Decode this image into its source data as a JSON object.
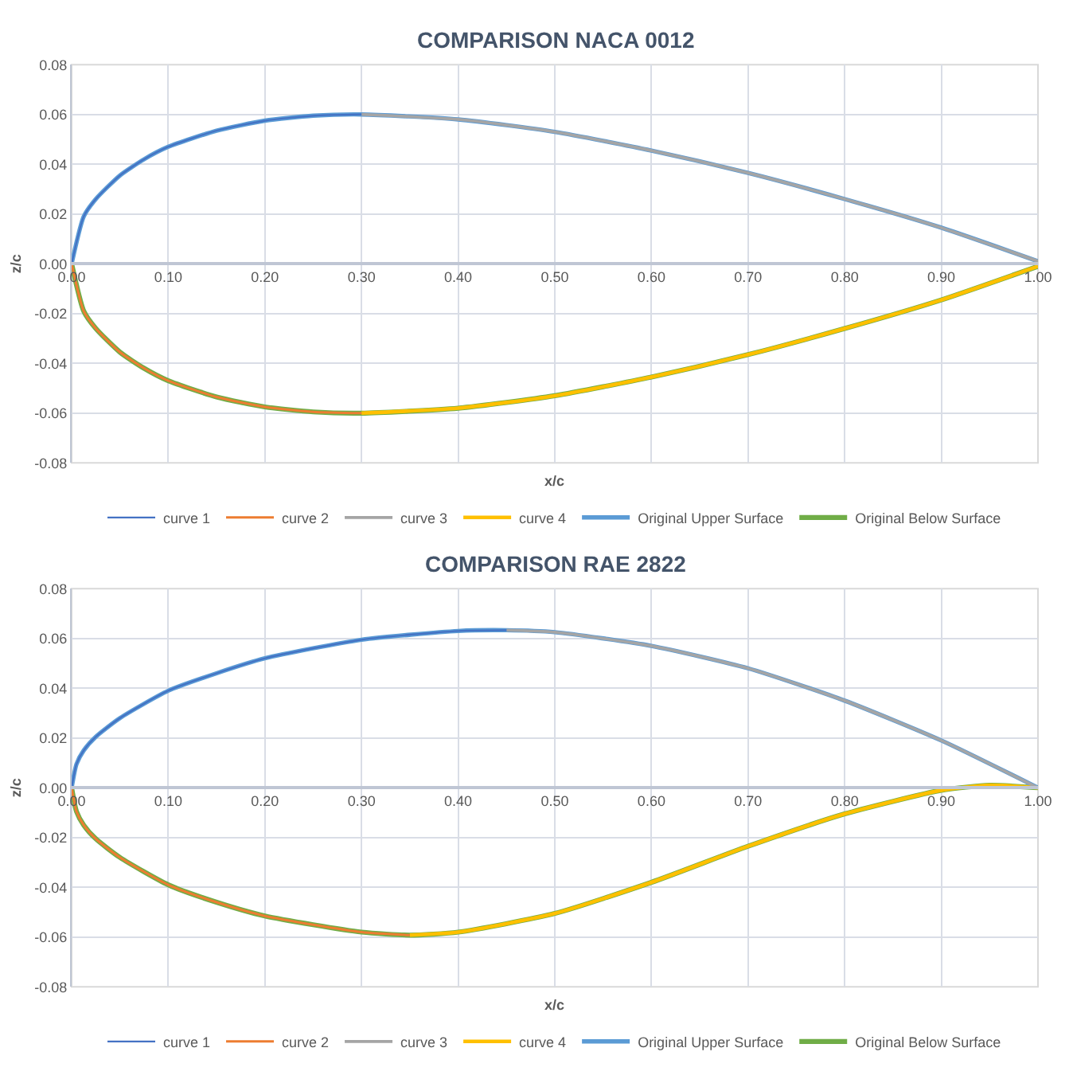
{
  "chart_data": [
    {
      "type": "line",
      "title": "COMPARISON NACA 0012",
      "xlabel": "x/c",
      "ylabel": "z/c",
      "grid": true,
      "legend": "bottom",
      "xlim": [
        0,
        1
      ],
      "ylim": [
        -0.08,
        0.08
      ],
      "xticks": [
        {
          "value": 0,
          "label": "0.00"
        },
        {
          "value": 0.1,
          "label": "0.10"
        },
        {
          "value": 0.2,
          "label": "0.20"
        },
        {
          "value": 0.3,
          "label": "0.30"
        },
        {
          "value": 0.4,
          "label": "0.40"
        },
        {
          "value": 0.5,
          "label": "0.50"
        },
        {
          "value": 0.6,
          "label": "0.60"
        },
        {
          "value": 0.7,
          "label": "0.70"
        },
        {
          "value": 0.8,
          "label": "0.80"
        },
        {
          "value": 0.9,
          "label": "0.90"
        },
        {
          "value": 1,
          "label": "1.00"
        }
      ],
      "yticks": [
        {
          "value": -0.08,
          "label": "-0.08"
        },
        {
          "value": -0.06,
          "label": "-0.06"
        },
        {
          "value": -0.04,
          "label": "-0.04"
        },
        {
          "value": -0.02,
          "label": "-0.02"
        },
        {
          "value": 0,
          "label": "0.00"
        },
        {
          "value": 0.02,
          "label": "0.02"
        },
        {
          "value": 0.04,
          "label": "0.04"
        },
        {
          "value": 0.06,
          "label": "0.06"
        },
        {
          "value": 0.08,
          "label": "0.08"
        }
      ],
      "series": [
        {
          "name": "curve 1",
          "color": "#4472c4",
          "x": [
            0,
            0.0125,
            0.025,
            0.05,
            0.075,
            0.1,
            0.15,
            0.2,
            0.25,
            0.3
          ],
          "values": [
            0,
            0.019,
            0.026,
            0.0355,
            0.042,
            0.047,
            0.0535,
            0.0575,
            0.0595,
            0.06
          ]
        },
        {
          "name": "curve 2",
          "color": "#ed7d31",
          "x": [
            0,
            0.0125,
            0.025,
            0.05,
            0.075,
            0.1,
            0.15,
            0.2,
            0.25,
            0.3
          ],
          "values": [
            0,
            -0.019,
            -0.026,
            -0.0355,
            -0.042,
            -0.047,
            -0.0535,
            -0.0575,
            -0.0595,
            -0.06
          ]
        },
        {
          "name": "curve 3",
          "color": "#a5a5a5",
          "x": [
            0.3,
            0.4,
            0.5,
            0.6,
            0.7,
            0.8,
            0.9,
            1.0
          ],
          "values": [
            0.06,
            0.058,
            0.053,
            0.0455,
            0.0365,
            0.026,
            0.0145,
            0.001
          ]
        },
        {
          "name": "curve 4",
          "color": "#ffc000",
          "x": [
            0.3,
            0.4,
            0.5,
            0.6,
            0.7,
            0.8,
            0.9,
            1.0
          ],
          "values": [
            -0.06,
            -0.058,
            -0.053,
            -0.0455,
            -0.0365,
            -0.026,
            -0.0145,
            -0.001
          ]
        },
        {
          "name": "Original Upper Surface",
          "color": "#5b9bd5",
          "x": [
            0,
            0.0125,
            0.025,
            0.05,
            0.075,
            0.1,
            0.15,
            0.2,
            0.25,
            0.3,
            0.4,
            0.5,
            0.6,
            0.7,
            0.8,
            0.9,
            1.0
          ],
          "values": [
            0,
            0.019,
            0.026,
            0.0355,
            0.042,
            0.047,
            0.0535,
            0.0575,
            0.0595,
            0.06,
            0.058,
            0.053,
            0.0455,
            0.0365,
            0.026,
            0.0145,
            0.001
          ]
        },
        {
          "name": "Original Below Surface",
          "color": "#70ad47",
          "x": [
            0,
            0.0125,
            0.025,
            0.05,
            0.075,
            0.1,
            0.15,
            0.2,
            0.25,
            0.3,
            0.4,
            0.5,
            0.6,
            0.7,
            0.8,
            0.9,
            1.0
          ],
          "values": [
            0,
            -0.019,
            -0.026,
            -0.0355,
            -0.042,
            -0.047,
            -0.0535,
            -0.0575,
            -0.0595,
            -0.06,
            -0.058,
            -0.053,
            -0.0455,
            -0.0365,
            -0.026,
            -0.0145,
            -0.001
          ]
        }
      ]
    },
    {
      "type": "line",
      "title": "COMPARISON RAE 2822",
      "xlabel": "x/c",
      "ylabel": "z/c",
      "grid": true,
      "legend": "bottom",
      "xlim": [
        0,
        1
      ],
      "ylim": [
        -0.08,
        0.08
      ],
      "xticks": [
        {
          "value": 0,
          "label": "0.00"
        },
        {
          "value": 0.1,
          "label": "0.10"
        },
        {
          "value": 0.2,
          "label": "0.20"
        },
        {
          "value": 0.3,
          "label": "0.30"
        },
        {
          "value": 0.4,
          "label": "0.40"
        },
        {
          "value": 0.5,
          "label": "0.50"
        },
        {
          "value": 0.6,
          "label": "0.60"
        },
        {
          "value": 0.7,
          "label": "0.70"
        },
        {
          "value": 0.8,
          "label": "0.80"
        },
        {
          "value": 0.9,
          "label": "0.90"
        },
        {
          "value": 1,
          "label": "1.00"
        }
      ],
      "yticks": [
        {
          "value": -0.08,
          "label": "-0.08"
        },
        {
          "value": -0.06,
          "label": "-0.06"
        },
        {
          "value": -0.04,
          "label": "-0.04"
        },
        {
          "value": -0.02,
          "label": "-0.02"
        },
        {
          "value": 0,
          "label": "0.00"
        },
        {
          "value": 0.02,
          "label": "0.02"
        },
        {
          "value": 0.04,
          "label": "0.04"
        },
        {
          "value": 0.06,
          "label": "0.06"
        },
        {
          "value": 0.08,
          "label": "0.08"
        }
      ],
      "series": [
        {
          "name": "curve 1",
          "color": "#4472c4",
          "x": [
            0,
            0.005,
            0.0125,
            0.025,
            0.05,
            0.1,
            0.15,
            0.2,
            0.3,
            0.4,
            0.45
          ],
          "values": [
            0,
            0.0095,
            0.015,
            0.0205,
            0.028,
            0.039,
            0.046,
            0.052,
            0.0595,
            0.063,
            0.0633
          ]
        },
        {
          "name": "curve 2",
          "color": "#ed7d31",
          "x": [
            0,
            0.005,
            0.0125,
            0.025,
            0.05,
            0.1,
            0.15,
            0.2,
            0.3,
            0.35
          ],
          "values": [
            0,
            -0.0095,
            -0.015,
            -0.0205,
            -0.028,
            -0.039,
            -0.046,
            -0.0515,
            -0.058,
            -0.0592
          ]
        },
        {
          "name": "curve 3",
          "color": "#a5a5a5",
          "x": [
            0.45,
            0.5,
            0.6,
            0.7,
            0.8,
            0.9,
            1.0
          ],
          "values": [
            0.0633,
            0.0625,
            0.057,
            0.048,
            0.035,
            0.019,
            0
          ]
        },
        {
          "name": "curve 4",
          "color": "#ffc000",
          "x": [
            0.35,
            0.4,
            0.5,
            0.6,
            0.7,
            0.8,
            0.9,
            0.95,
            1.0
          ],
          "values": [
            -0.0592,
            -0.058,
            -0.0505,
            -0.038,
            -0.0235,
            -0.0105,
            -0.001,
            0.001,
            0
          ]
        },
        {
          "name": "Original Upper Surface",
          "color": "#5b9bd5",
          "x": [
            0,
            0.005,
            0.0125,
            0.025,
            0.05,
            0.1,
            0.15,
            0.2,
            0.3,
            0.4,
            0.45,
            0.5,
            0.6,
            0.7,
            0.8,
            0.9,
            1.0
          ],
          "values": [
            0,
            0.0095,
            0.015,
            0.0205,
            0.028,
            0.039,
            0.046,
            0.052,
            0.0595,
            0.063,
            0.0633,
            0.0625,
            0.057,
            0.048,
            0.035,
            0.019,
            0
          ]
        },
        {
          "name": "Original Below Surface",
          "color": "#70ad47",
          "x": [
            0,
            0.005,
            0.0125,
            0.025,
            0.05,
            0.1,
            0.15,
            0.2,
            0.3,
            0.35,
            0.4,
            0.5,
            0.6,
            0.7,
            0.8,
            0.9,
            0.95,
            1.0
          ],
          "values": [
            0,
            -0.0095,
            -0.015,
            -0.0205,
            -0.028,
            -0.039,
            -0.046,
            -0.0515,
            -0.058,
            -0.0592,
            -0.058,
            -0.0505,
            -0.038,
            -0.0235,
            -0.0105,
            -0.001,
            0.001,
            0
          ]
        }
      ]
    }
  ]
}
